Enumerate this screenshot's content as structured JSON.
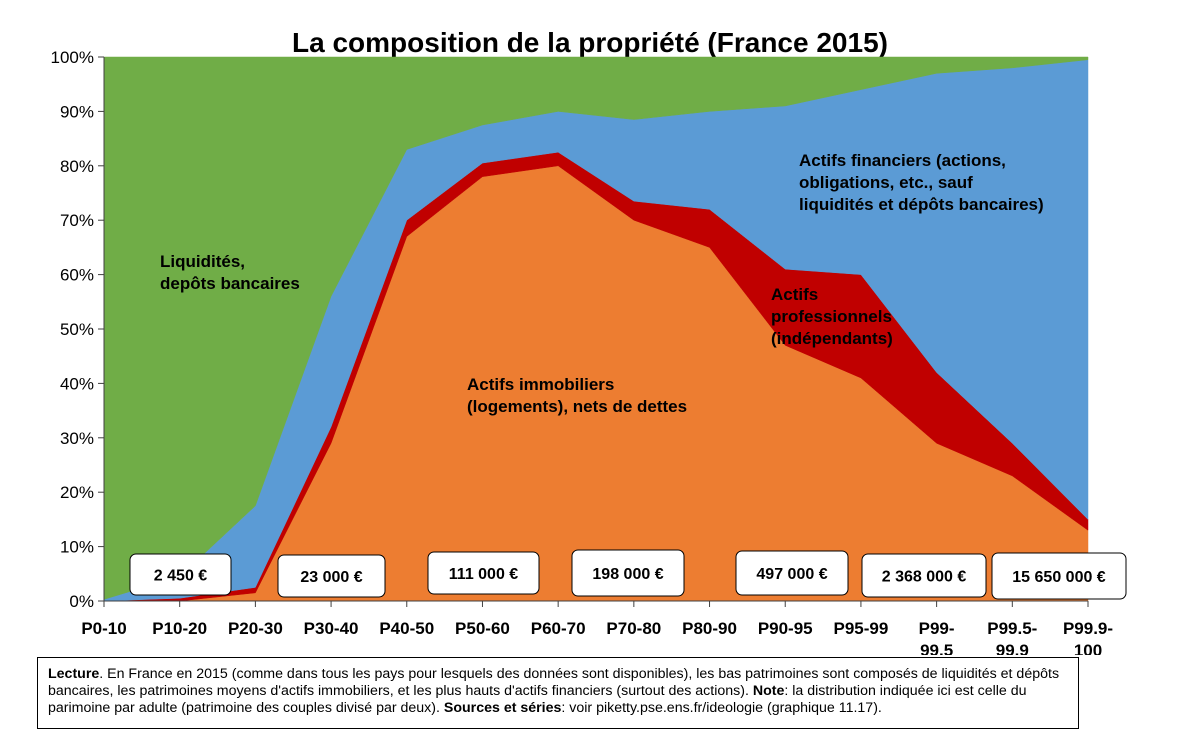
{
  "chart_data": {
    "type": "area",
    "stacked": true,
    "title": "La composition de la propriété (France 2015)",
    "categories": [
      "P0-10",
      "P10-20",
      "P20-30",
      "P30-40",
      "P40-50",
      "P50-60",
      "P60-70",
      "P70-80",
      "P80-90",
      "P90-95",
      "P95-99",
      "P99-99.5",
      "P99.5-99.9",
      "P99.9-100"
    ],
    "category_labels": [
      [
        "P0-10"
      ],
      [
        "P10-20"
      ],
      [
        "P20-30"
      ],
      [
        "P30-40"
      ],
      [
        "P40-50"
      ],
      [
        "P50-60"
      ],
      [
        "P60-70"
      ],
      [
        "P70-80"
      ],
      [
        "P80-90"
      ],
      [
        "P90-95"
      ],
      [
        "P95-99"
      ],
      [
        "P99-",
        "99.5"
      ],
      [
        "P99.5-",
        "99.9"
      ],
      [
        "P99.9-",
        "100"
      ]
    ],
    "y_unit": "%",
    "ylim": [
      0,
      100
    ],
    "yticks": [
      "0%",
      "10%",
      "20%",
      "30%",
      "40%",
      "50%",
      "60%",
      "70%",
      "80%",
      "90%",
      "100%"
    ],
    "series": [
      {
        "key": "immobiliers",
        "values": [
          0,
          0,
          1.5,
          29,
          67,
          78,
          80,
          70,
          65,
          47,
          41,
          29,
          23,
          13
        ],
        "color": "#ED7D31"
      },
      {
        "key": "professionnels",
        "values": [
          0,
          0.5,
          1,
          3,
          3,
          2.5,
          2.5,
          3.5,
          7,
          14,
          19,
          13,
          6,
          2
        ],
        "color": "#C00000"
      },
      {
        "key": "financiers",
        "values": [
          0.3,
          4,
          15,
          24,
          13,
          7,
          7.5,
          15,
          18,
          30,
          34,
          55,
          69,
          84.5
        ],
        "color": "#5B9BD5"
      },
      {
        "key": "liquidites",
        "values": [
          99.7,
          95.5,
          82.5,
          44,
          17,
          12.5,
          10,
          11.5,
          10,
          9,
          6,
          3,
          2,
          0.5
        ],
        "color": "#70AD47"
      }
    ],
    "area_labels": {
      "liquidites": [
        "Liquidités,",
        "depôts bancaires"
      ],
      "immobiliers": [
        "Actifs immobiliers",
        "(logements), nets de dettes"
      ],
      "financiers": [
        "Actifs financiers (actions,",
        "obligations, etc., sauf",
        "liquidités et dépôts bancaires)"
      ],
      "professionnels": [
        "Actifs",
        "professionnels",
        "(indépendants)"
      ]
    },
    "wealth_boxes": [
      "2 450 €",
      "23 000 €",
      "111 000 €",
      "198 000 €",
      "497 000 €",
      "2 368 000 €",
      "15 650 000 €"
    ],
    "grid": false,
    "legend": "none"
  },
  "note": {
    "lecture_label": "Lecture",
    "lecture_text": ". En France en 2015 (comme dans tous les pays pour lesquels des données sont disponibles), les bas patrimoines sont composés de liquidités et dépôts bancaires, les patrimoines moyens d'actifs immobiliers, et les plus hauts d'actifs financiers (surtout des actions). ",
    "note_label": "Note",
    "note_text": ": la distribution indiquée ici est celle du parimoine par adulte (patrimoine des couples divisé par deux). ",
    "sources_label": "Sources et séries",
    "sources_text": ": voir piketty.pse.ens.fr/ideologie (graphique 11.17)."
  }
}
